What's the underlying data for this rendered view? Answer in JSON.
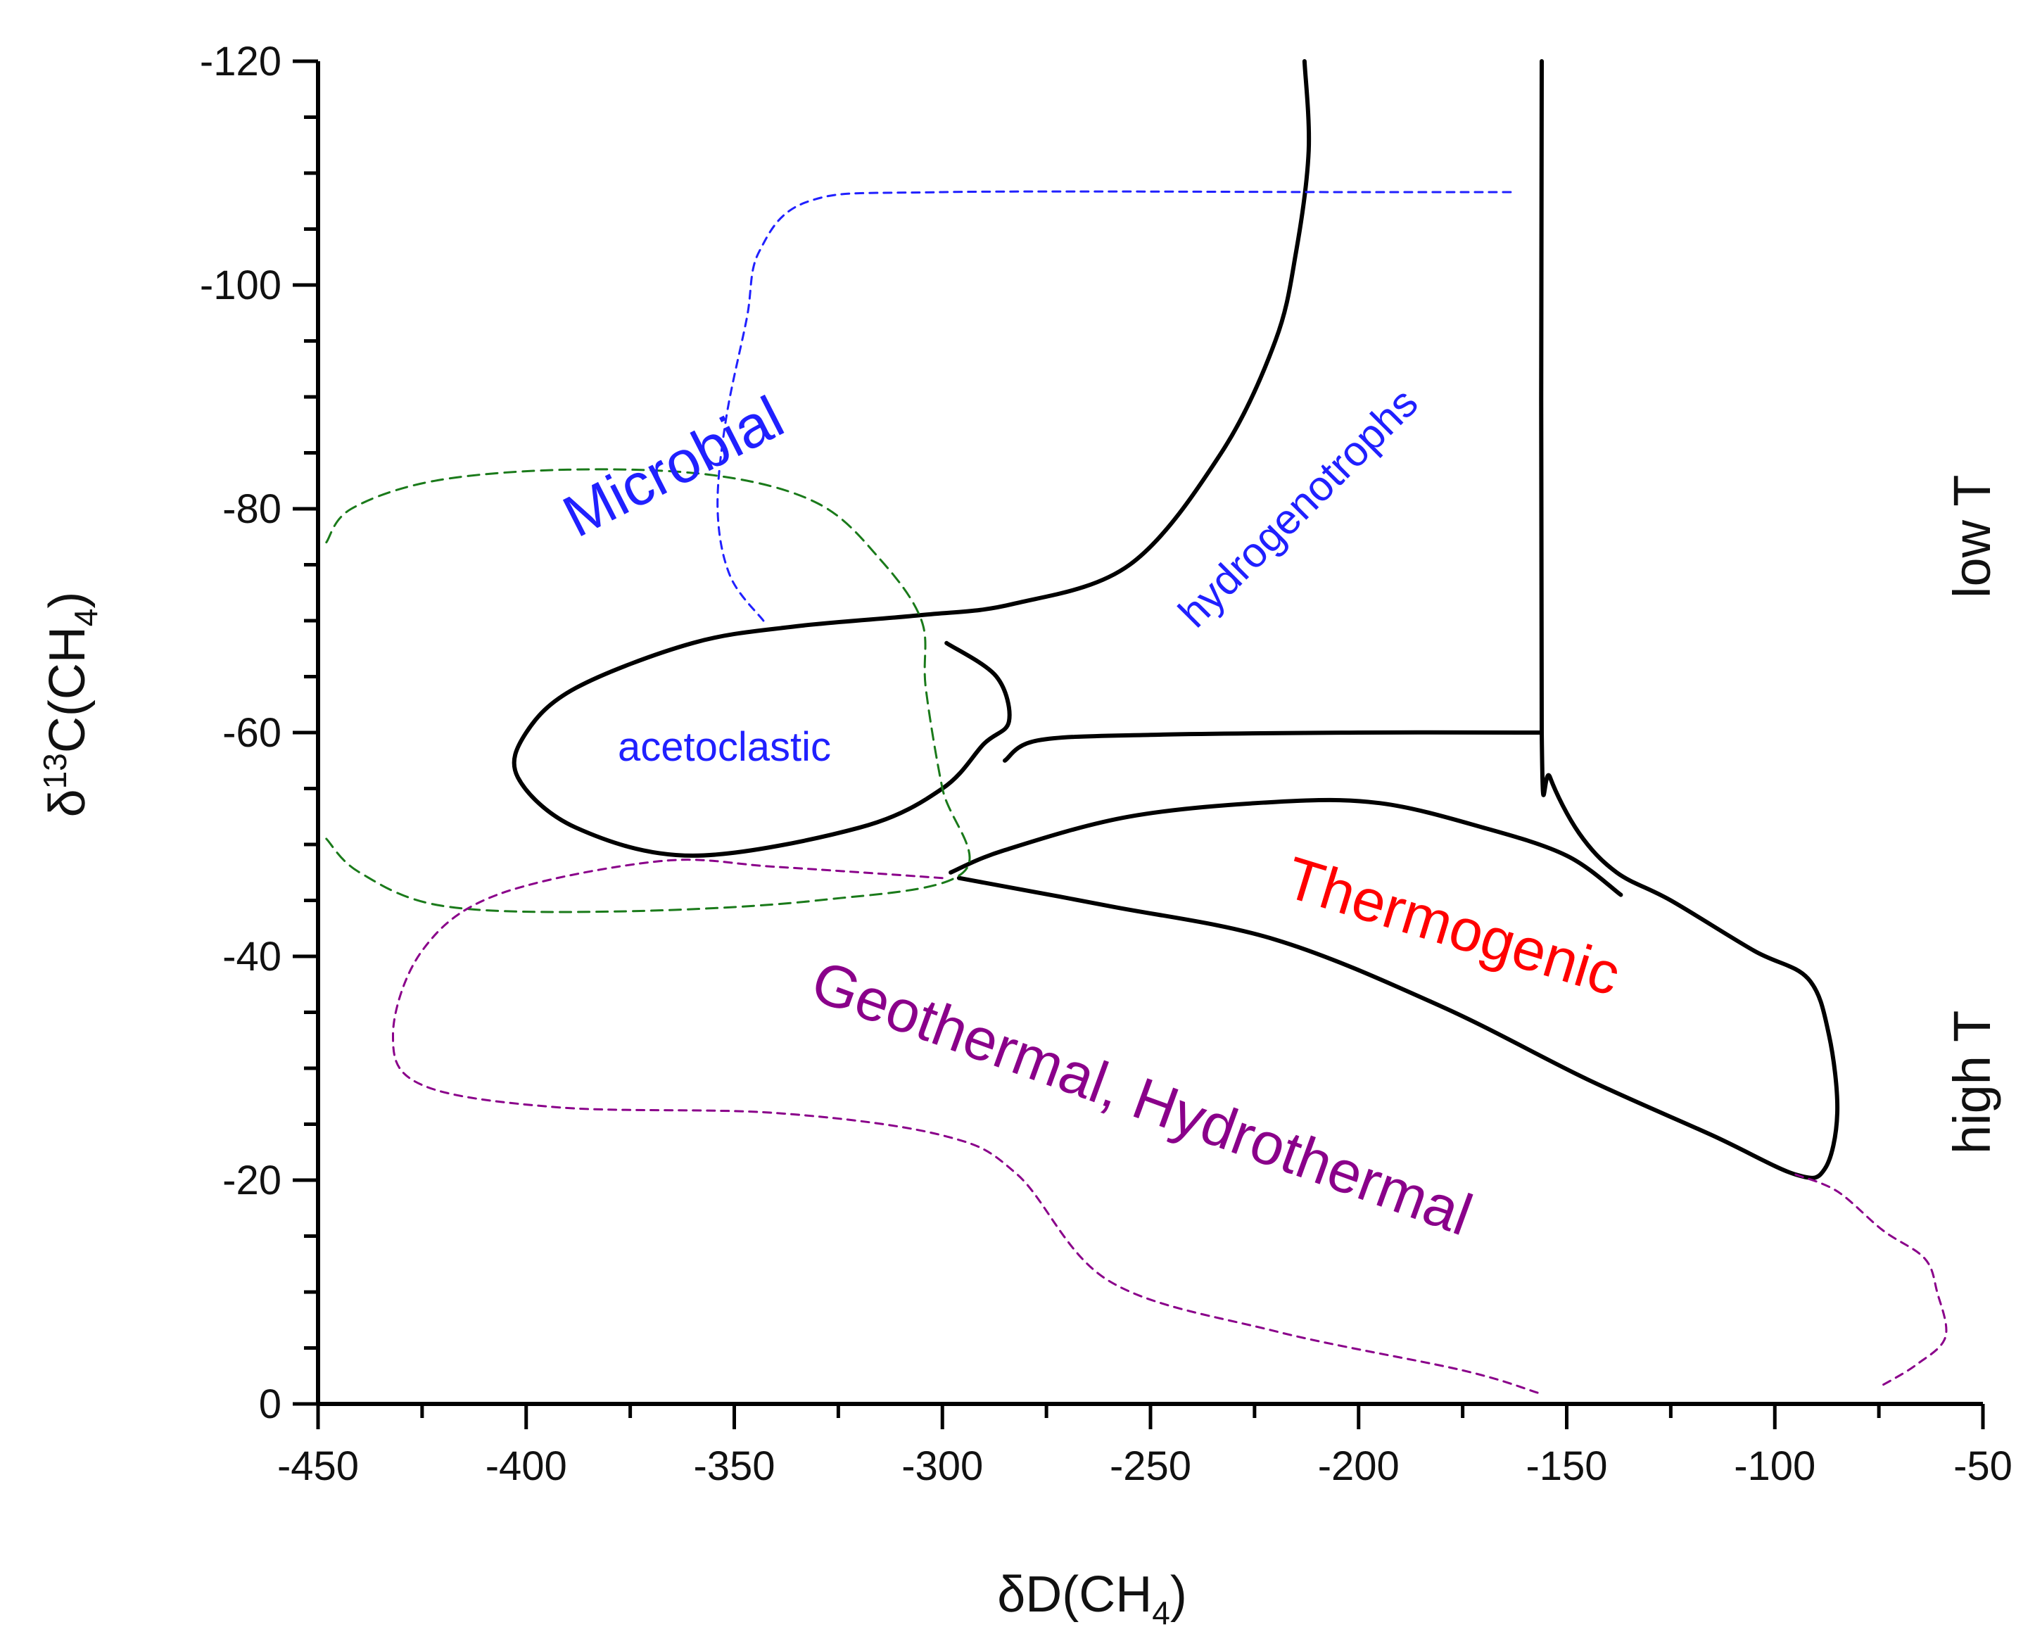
{
  "chart_data": {
    "type": "scatter",
    "title": "",
    "xlabel": "δD(CH",
    "xlabel_sub": "4",
    "xlabel_end": ")",
    "ylabel": "δ",
    "ylabel_sup": "13",
    "ylabel_mid": "C(CH",
    "ylabel_sub": "4",
    "ylabel_end": ")",
    "xlim": [
      -450,
      -50
    ],
    "ylim": [
      0,
      -120
    ],
    "x_ticks": [
      -450,
      -400,
      -350,
      -300,
      -250,
      -200,
      -150,
      -100,
      -50
    ],
    "x_tick_labels": [
      "-450",
      "-400",
      "-350",
      "-300",
      "-250",
      "-200",
      "-150",
      "-100",
      "-50"
    ],
    "y_ticks": [
      0,
      -20,
      -40,
      -60,
      -80,
      -100,
      -120
    ],
    "y_tick_labels": [
      "0",
      "-20",
      "-40",
      "-60",
      "-80",
      "-100",
      "-120"
    ],
    "grid": false,
    "colors": {
      "axis": "#000000",
      "solid": "#000000",
      "microbial": "#2020ff",
      "green": "#1a7a1a",
      "geothermal": "#8a008a",
      "thermogenic": "#ff0000"
    },
    "region_labels": {
      "microbial": "Microbial",
      "hydrogenotrophs": "hydrogenotrophs",
      "acetoclastic": "acetoclastic",
      "thermogenic": "Thermogenic",
      "geothermal": "Geothermal, Hydrothermal",
      "low_t": "low T",
      "high_t": "high T"
    },
    "boundaries": [
      {
        "name": "hydrogenotroph-boundary",
        "style": "solid",
        "color": "solid",
        "points": [
          [
            -213,
            -120
          ],
          [
            -212,
            -112
          ],
          [
            -215,
            -103
          ],
          [
            -220,
            -95
          ],
          [
            -233,
            -85
          ],
          [
            -255,
            -75
          ],
          [
            -283,
            -71.5
          ],
          [
            -305,
            -70.5
          ],
          [
            -335,
            -69.5
          ],
          [
            -360,
            -68
          ],
          [
            -388,
            -64
          ],
          [
            -400,
            -60
          ],
          [
            -402,
            -56
          ],
          [
            -388,
            -51.5
          ],
          [
            -360,
            -49
          ],
          [
            -320,
            -51.5
          ],
          [
            -300,
            -55
          ],
          [
            -290,
            -59
          ],
          [
            -284,
            -61
          ],
          [
            -287,
            -65
          ],
          [
            -299,
            -68
          ]
        ]
      },
      {
        "name": "thermogenic-upper-boundary",
        "style": "solid",
        "color": "solid",
        "points": [
          [
            -285,
            -57.5
          ],
          [
            -277,
            -59.3
          ],
          [
            -250,
            -59.8
          ],
          [
            -200,
            -60
          ],
          [
            -156,
            -60
          ]
        ]
      },
      {
        "name": "vertical-boundary",
        "style": "solid",
        "color": "solid",
        "points": [
          [
            -156,
            -120
          ],
          [
            -156,
            -60
          ],
          [
            -154,
            -56
          ],
          [
            -147,
            -51
          ],
          [
            -138,
            -47.5
          ],
          [
            -125,
            -45
          ],
          [
            -105,
            -40.5
          ],
          [
            -92,
            -38
          ],
          [
            -87,
            -33
          ],
          [
            -85,
            -26
          ],
          [
            -88,
            -21
          ],
          [
            -95,
            -20.5
          ],
          [
            -115,
            -24
          ],
          [
            -145,
            -29
          ],
          [
            -180,
            -35.5
          ],
          [
            -220,
            -41.5
          ],
          [
            -260,
            -44.5
          ],
          [
            -296,
            -47
          ]
        ]
      },
      {
        "name": "thermogenic-inner-boundary",
        "style": "solid",
        "color": "solid",
        "points": [
          [
            -298,
            -47.5
          ],
          [
            -285,
            -49.5
          ],
          [
            -255,
            -52.5
          ],
          [
            -220,
            -53.8
          ],
          [
            -195,
            -53.7
          ],
          [
            -170,
            -51.5
          ],
          [
            -150,
            -49
          ],
          [
            -137,
            -45.5
          ]
        ]
      },
      {
        "name": "microbial-boundary",
        "style": "dashed",
        "color": "microbial",
        "points": [
          [
            -343,
            -70
          ],
          [
            -351,
            -74
          ],
          [
            -354,
            -80
          ],
          [
            -352,
            -88
          ],
          [
            -347,
            -97
          ],
          [
            -344,
            -103
          ],
          [
            -332,
            -107.5
          ],
          [
            -300,
            -108.3
          ],
          [
            -200,
            -108.3
          ],
          [
            -162,
            -108.3
          ]
        ]
      },
      {
        "name": "green-dashed-boundary",
        "style": "dashed",
        "color": "green",
        "points": [
          [
            -448,
            -77
          ],
          [
            -442,
            -80
          ],
          [
            -422,
            -82.5
          ],
          [
            -390,
            -83.5
          ],
          [
            -355,
            -83
          ],
          [
            -330,
            -80.5
          ],
          [
            -315,
            -75.5
          ],
          [
            -305,
            -70
          ],
          [
            -304,
            -64
          ],
          [
            -300,
            -55
          ],
          [
            -295,
            -47.5
          ],
          [
            -330,
            -45
          ],
          [
            -380,
            -44
          ],
          [
            -420,
            -44.5
          ],
          [
            -440,
            -47.5
          ],
          [
            -448,
            -50.5
          ]
        ]
      },
      {
        "name": "geothermal-boundary",
        "style": "dashed",
        "color": "geothermal",
        "points": [
          [
            -157,
            -1
          ],
          [
            -175,
            -3
          ],
          [
            -220,
            -6.5
          ],
          [
            -260,
            -11
          ],
          [
            -282,
            -20.5
          ],
          [
            -300,
            -24
          ],
          [
            -340,
            -26
          ],
          [
            -392,
            -26.5
          ],
          [
            -425,
            -28.5
          ],
          [
            -432,
            -33
          ],
          [
            -425,
            -40.5
          ],
          [
            -407,
            -45.5
          ],
          [
            -368,
            -48.5
          ],
          [
            -340,
            -48
          ],
          [
            -300,
            -47
          ]
        ]
      },
      {
        "name": "geothermal-right-boundary",
        "style": "dashed",
        "color": "geothermal",
        "points": [
          [
            -95,
            -20.5
          ],
          [
            -85,
            -19
          ],
          [
            -74,
            -15.5
          ],
          [
            -64,
            -13
          ],
          [
            -61,
            -10
          ],
          [
            -59,
            -6
          ],
          [
            -66,
            -3.5
          ],
          [
            -75,
            -1.5
          ]
        ]
      }
    ]
  }
}
